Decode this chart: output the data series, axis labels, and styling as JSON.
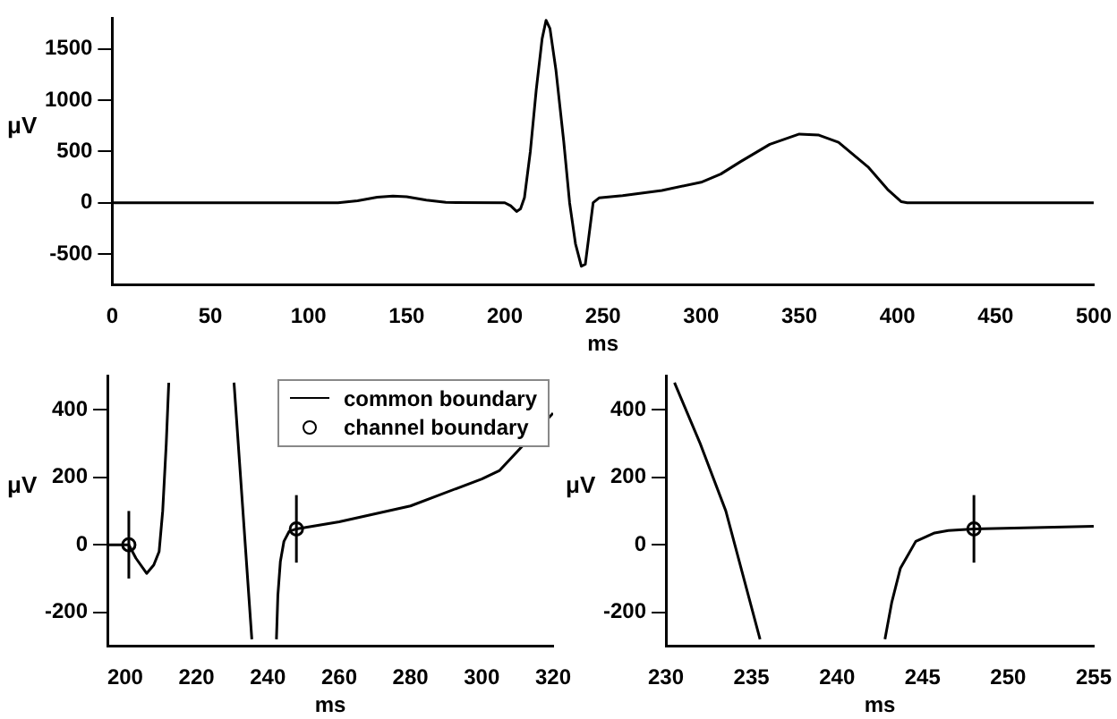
{
  "chart_data": [
    {
      "type": "line",
      "xlabel": "ms",
      "ylabel": "μV",
      "xlim": [
        0,
        500
      ],
      "ylim": [
        -800,
        1800
      ],
      "xticks": [
        0,
        50,
        100,
        150,
        200,
        250,
        300,
        350,
        400,
        450,
        500
      ],
      "yticks": [
        -500,
        0,
        500,
        1000,
        1500
      ],
      "grid": false,
      "legend": false,
      "series": [
        {
          "color": "#000000",
          "x": [
            0,
            115,
            125,
            135,
            143,
            150,
            160,
            170,
            200,
            203,
            206,
            208,
            210,
            213,
            216,
            219,
            221,
            223,
            226,
            230,
            233,
            236,
            239,
            241,
            243,
            245,
            248,
            260,
            280,
            300,
            310,
            320,
            335,
            350,
            360,
            370,
            385,
            395,
            402,
            405,
            500
          ],
          "values": [
            0,
            0,
            20,
            55,
            65,
            58,
            25,
            3,
            0,
            -30,
            -85,
            -60,
            50,
            500,
            1100,
            1600,
            1780,
            1700,
            1300,
            600,
            0,
            -400,
            -620,
            -600,
            -300,
            0,
            47,
            70,
            120,
            200,
            280,
            400,
            570,
            670,
            660,
            590,
            350,
            130,
            10,
            0,
            0
          ]
        }
      ]
    },
    {
      "type": "line",
      "xlabel": "ms",
      "ylabel": "μV",
      "xlim": [
        195,
        320
      ],
      "ylim": [
        -300,
        500
      ],
      "xticks": [
        200,
        220,
        240,
        260,
        280,
        300,
        320
      ],
      "yticks": [
        -200,
        0,
        200,
        400
      ],
      "grid": false,
      "legend": "top right",
      "series": [
        {
          "name": "common boundary",
          "color": "#000000",
          "x": [
            195,
            201,
            203,
            206,
            208,
            209.5,
            210.5,
            211.5,
            212.2,
            221,
            230.5,
            233,
            235.5,
            239,
            242.4,
            242.8,
            243.5,
            244.5,
            246,
            248,
            260,
            280,
            300,
            305,
            320
          ],
          "values": [
            0,
            0,
            -40,
            -85,
            -60,
            -20,
            100,
            300,
            480,
            null,
            480,
            100,
            -280,
            null,
            -280,
            -150,
            -50,
            10,
            40,
            47,
            68,
            115,
            195,
            220,
            390
          ]
        },
        {
          "name": "channel boundary",
          "type": "scatter",
          "marker": "circle",
          "color": "#000000",
          "x": [
            201,
            248
          ],
          "values": [
            0,
            47
          ],
          "errors": [
            100,
            100
          ]
        }
      ]
    },
    {
      "type": "line",
      "xlabel": "ms",
      "ylabel": "μV",
      "xlim": [
        230,
        255
      ],
      "ylim": [
        -300,
        500
      ],
      "xticks": [
        230,
        235,
        240,
        245,
        250,
        255
      ],
      "yticks": [
        -200,
        0,
        200,
        400
      ],
      "grid": false,
      "legend": false,
      "series": [
        {
          "color": "#000000",
          "x": [
            230.5,
            232,
            233.5,
            235.5,
            239,
            242.8,
            243.2,
            243.7,
            244.6,
            245.7,
            246.5,
            248,
            255
          ],
          "values": [
            480,
            300,
            100,
            -280,
            null,
            -280,
            -170,
            -70,
            10,
            35,
            42,
            47,
            55
          ]
        },
        {
          "type": "scatter",
          "marker": "circle",
          "color": "#000000",
          "x": [
            248
          ],
          "values": [
            47
          ],
          "errors": [
            100
          ]
        }
      ]
    }
  ]
}
